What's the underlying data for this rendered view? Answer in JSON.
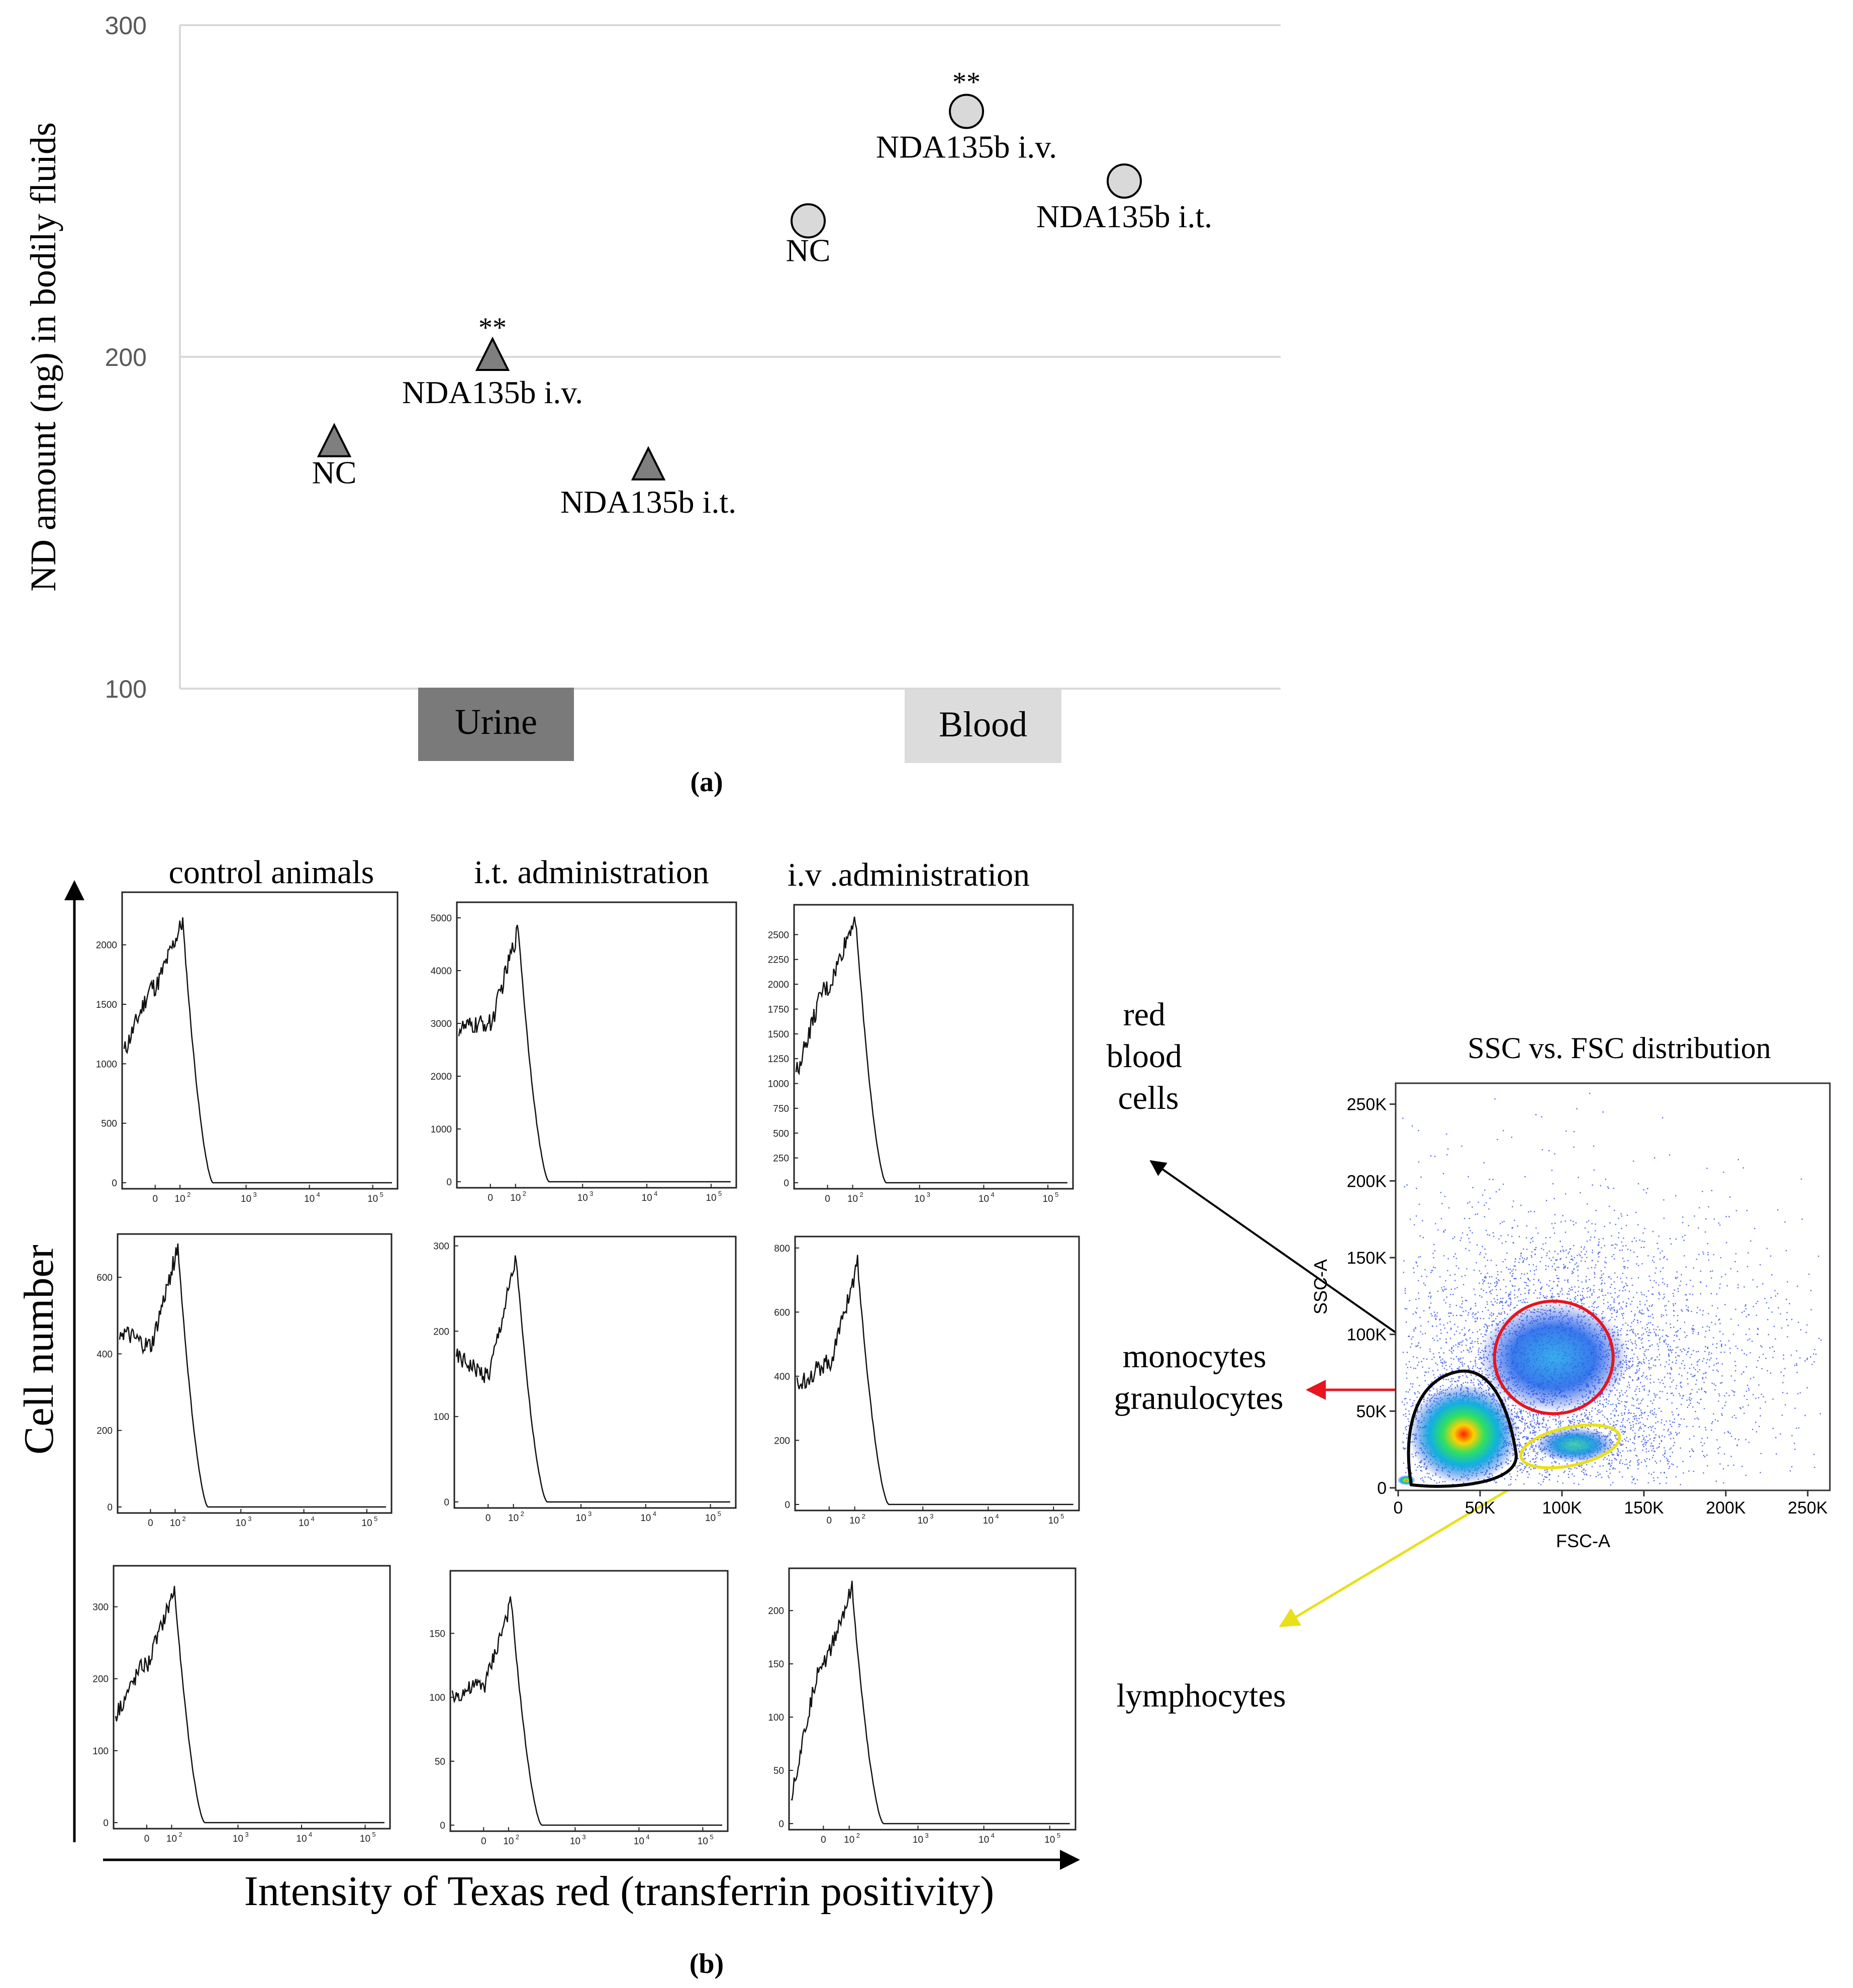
{
  "panel_a": {
    "caption": "(a)",
    "ylabel": "ND amount (ng) in bodily fluids",
    "yticks": [
      "100",
      "200",
      "300"
    ],
    "category_labels": [
      "Urine",
      "Blood"
    ]
  },
  "panel_b": {
    "caption": "(b)",
    "column_titles": [
      "control animals",
      "i.t. administration",
      "i.v .administration"
    ],
    "row_labels": [
      "red\nblood\ncells",
      "monocytes\ngranulocytes",
      "lymphocytes"
    ],
    "y_axis_label": "Cell number",
    "x_axis_label": "Intensity of Texas red (transferrin positivity)",
    "scatter_title": "SSC vs. FSC distribution",
    "scatter_xlabel": "FSC-A",
    "scatter_ylabel": "SSC-A",
    "scatter_ticks": [
      "0",
      "50K",
      "100K",
      "150K",
      "200K",
      "250K"
    ],
    "histogram_xticks": [
      "0",
      "10",
      "10",
      "10",
      "10"
    ],
    "histogram_xtick_exponents": [
      "",
      "2",
      "3",
      "4",
      "5"
    ]
  },
  "colors": {
    "urine_marker": "#7f7f7f",
    "blood_marker": "#d9d9d9",
    "urine_box": "#7a7a7a",
    "blood_box": "#dcdcdc",
    "gridline": "#d9d9d9",
    "gate_rbc": "#000000",
    "gate_mono": "#e8141e",
    "gate_lymph": "#e8e01a",
    "scatter_dots": "#1f3fe0"
  },
  "chart_data": [
    {
      "type": "scatter",
      "title": "",
      "xlabel": "",
      "ylabel": "ND amount (ng) in bodily fluids",
      "ylim": [
        100,
        300
      ],
      "categories": [
        "Urine",
        "Blood"
      ],
      "series": [
        {
          "name": "Urine",
          "marker": "triangle",
          "points": [
            {
              "label": "NC",
              "value": 174,
              "sig": ""
            },
            {
              "label": "NDA135b i.v.",
              "value": 200,
              "sig": "**"
            },
            {
              "label": "NDA135b i.t.",
              "value": 167,
              "sig": ""
            }
          ]
        },
        {
          "name": "Blood",
          "marker": "circle",
          "points": [
            {
              "label": "NC",
              "value": 241,
              "sig": ""
            },
            {
              "label": "NDA135b i.v.",
              "value": 274,
              "sig": "**"
            },
            {
              "label": "NDA135b i.t.",
              "value": 253,
              "sig": ""
            }
          ]
        }
      ]
    },
    {
      "type": "histogram_grid",
      "xlabel": "Intensity of Texas red (transferrin positivity)",
      "ylabel": "Cell number",
      "columns": [
        "control animals",
        "i.t. administration",
        "i.v .administration"
      ],
      "rows": [
        "red blood cells",
        "monocytes granulocytes",
        "lymphocytes"
      ],
      "panels": [
        {
          "row": 0,
          "col": 0,
          "yticks": [
            0,
            500,
            1000,
            1500,
            2000
          ],
          "ymax": 2400,
          "peak": 2200,
          "plateau": 1650,
          "start": 1100
        },
        {
          "row": 0,
          "col": 1,
          "yticks": [
            0,
            1000,
            2000,
            3000,
            4000,
            5000
          ],
          "ymax": 5200,
          "peak": 4800,
          "plateau": 3000,
          "start": 2900
        },
        {
          "row": 0,
          "col": 2,
          "yticks": [
            0,
            250,
            500,
            750,
            1000,
            1250,
            1500,
            1750,
            2000,
            2250,
            2500
          ],
          "ymax": 2750,
          "peak": 2700,
          "plateau": 1950,
          "start": 1100
        },
        {
          "row": 1,
          "col": 0,
          "yticks": [
            0,
            200,
            400,
            600
          ],
          "ymax": 700,
          "peak": 680,
          "plateau": 420,
          "start": 460
        },
        {
          "row": 1,
          "col": 1,
          "yticks": [
            0,
            100,
            200,
            300
          ],
          "ymax": 305,
          "peak": 285,
          "plateau": 150,
          "start": 170
        },
        {
          "row": 1,
          "col": 2,
          "yticks": [
            0,
            200,
            400,
            600,
            800
          ],
          "ymax": 820,
          "peak": 750,
          "plateau": 440,
          "start": 370
        },
        {
          "row": 2,
          "col": 0,
          "yticks": [
            0,
            100,
            200,
            300
          ],
          "ymax": 350,
          "peak": 325,
          "plateau": 220,
          "start": 150
        },
        {
          "row": 2,
          "col": 1,
          "yticks": [
            0,
            50,
            100,
            150
          ],
          "ymax": 195,
          "peak": 175,
          "plateau": 110,
          "start": 100
        },
        {
          "row": 2,
          "col": 2,
          "yticks": [
            0,
            50,
            100,
            150,
            200
          ],
          "ymax": 235,
          "peak": 220,
          "plateau": 150,
          "start": 25
        }
      ]
    },
    {
      "type": "scatter",
      "title": "SSC vs. FSC distribution",
      "xlabel": "FSC-A",
      "ylabel": "SSC-A",
      "xlim": [
        0,
        262000
      ],
      "ylim": [
        0,
        262000
      ],
      "gates": [
        {
          "name": "red blood cells",
          "color": "#000000",
          "center": [
            37000,
            35000
          ]
        },
        {
          "name": "monocytes granulocytes",
          "color": "#e8141e",
          "center": [
            95000,
            85000
          ]
        },
        {
          "name": "lymphocytes",
          "color": "#e8e01a",
          "center": [
            105000,
            27000
          ]
        }
      ]
    }
  ]
}
